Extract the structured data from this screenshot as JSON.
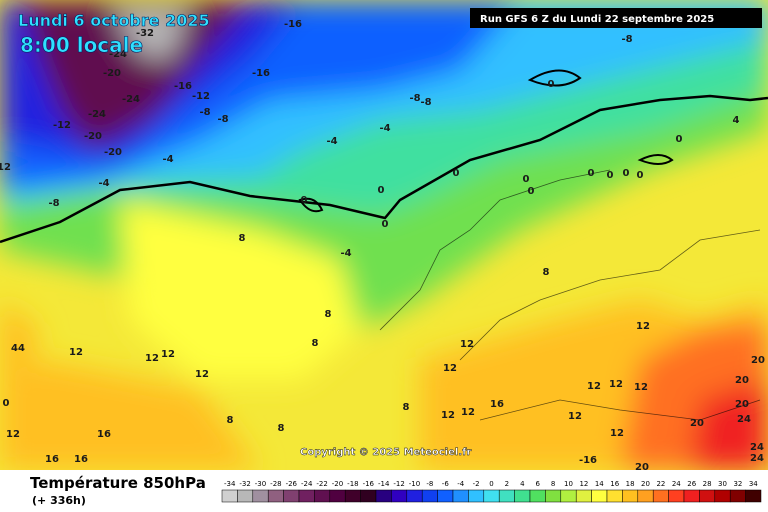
{
  "header": {
    "title": "Lundi 6 octobre 2025",
    "time": "8:00 locale"
  },
  "run": "Run GFS 6 Z du Lundi 22 septembre 2025",
  "copyright": "Copyright © 2025 Meteociel.fr",
  "footer": {
    "title": "Température 850hPa",
    "subtitle": "(+ 336h)"
  },
  "legend": {
    "values": [
      -34,
      -32,
      -30,
      -28,
      -26,
      -24,
      -22,
      -20,
      -18,
      -16,
      -14,
      -12,
      -10,
      -8,
      -6,
      -4,
      -2,
      0,
      2,
      4,
      6,
      8,
      10,
      12,
      14,
      16,
      18,
      20,
      22,
      24,
      26,
      28,
      30,
      32,
      34
    ],
    "colors": [
      "#d0d0d0",
      "#b8b8b8",
      "#a090a0",
      "#906080",
      "#804070",
      "#702060",
      "#601050",
      "#500040",
      "#40002a",
      "#300020",
      "#280080",
      "#3000c0",
      "#2020e0",
      "#1040f0",
      "#1060ff",
      "#2090ff",
      "#30c0ff",
      "#40e0f0",
      "#40e0c0",
      "#40e090",
      "#50e060",
      "#80e040",
      "#b0f040",
      "#e0f040",
      "#ffff40",
      "#ffe030",
      "#ffc020",
      "#ffa020",
      "#ff7020",
      "#ff4020",
      "#f02020",
      "#d01010",
      "#b00000",
      "#800000",
      "#400000"
    ]
  },
  "contour_labels": [
    -32,
    -16,
    -20,
    -24,
    -16,
    -16,
    -12,
    -8,
    -8,
    -24,
    -24,
    -12,
    -20,
    -20,
    -4,
    -4,
    -8,
    12,
    -8,
    -8,
    -8,
    0,
    -4,
    -4,
    0,
    0,
    0,
    0,
    0,
    0,
    0,
    0,
    0,
    0,
    0,
    4,
    8,
    -4,
    8,
    8,
    8,
    12,
    12,
    12,
    12,
    12,
    12,
    12,
    44,
    0,
    12,
    16,
    16,
    16,
    8,
    8,
    8,
    12,
    16,
    12,
    12,
    12,
    12,
    12,
    12,
    20,
    20,
    20,
    24,
    20,
    24,
    24,
    -16,
    20
  ]
}
